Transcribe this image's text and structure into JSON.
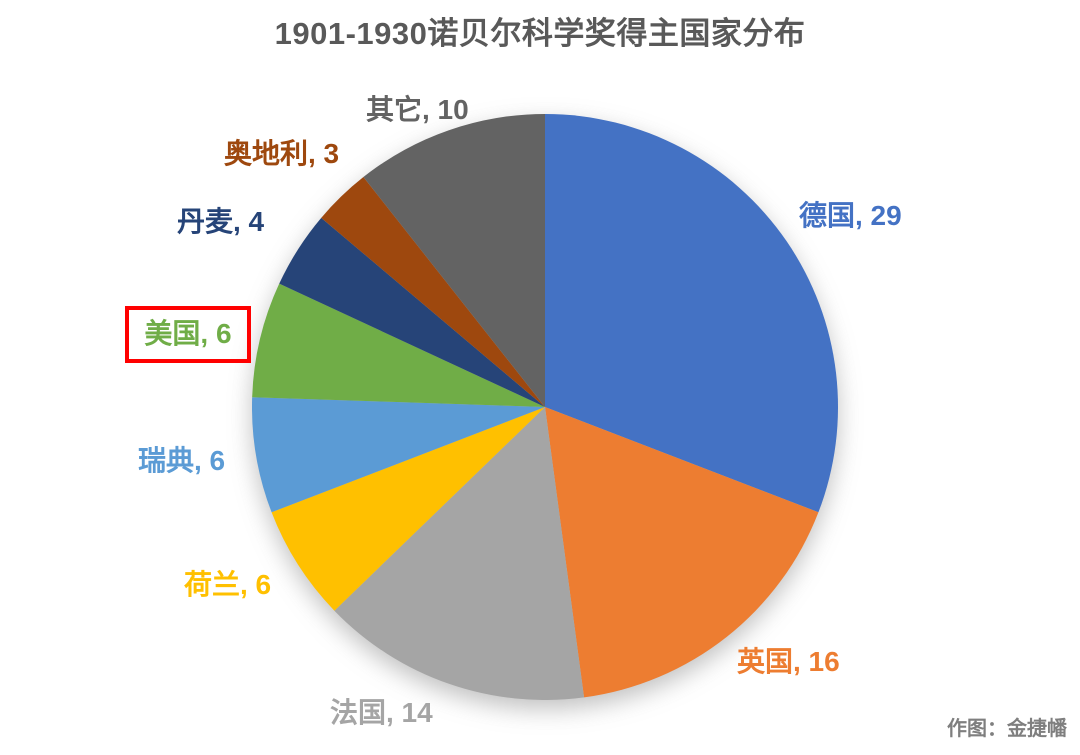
{
  "title": "1901-1930诺贝尔科学奖得主国家分布",
  "attribution": "作图：金捷幡",
  "chart_data": {
    "type": "pie",
    "title": "1901-1930诺贝尔科学奖得主国家分布",
    "total": 94,
    "start_angle_deg": 0,
    "direction": "clockwise",
    "legend": "none",
    "labels_position": "outside",
    "highlighted_slice": "美国",
    "highlight_color": "#FF0000",
    "title_color": "#595959",
    "attribution_color": "#7F7F7F",
    "slices": [
      {
        "key": "germany",
        "name": "德国",
        "value": 29,
        "label": "德国, 29",
        "color": "#4472C4"
      },
      {
        "key": "uk",
        "name": "英国",
        "value": 16,
        "label": "英国, 16",
        "color": "#ED7D31"
      },
      {
        "key": "france",
        "name": "法国",
        "value": 14,
        "label": "法国, 14",
        "color": "#A5A5A5"
      },
      {
        "key": "netherlands",
        "name": "荷兰",
        "value": 6,
        "label": "荷兰, 6",
        "color": "#FFC000"
      },
      {
        "key": "sweden",
        "name": "瑞典",
        "value": 6,
        "label": "瑞典, 6",
        "color": "#5B9BD5"
      },
      {
        "key": "usa",
        "name": "美国",
        "value": 6,
        "label": "美国, 6",
        "color": "#70AD47"
      },
      {
        "key": "denmark",
        "name": "丹麦",
        "value": 4,
        "label": "丹麦, 4",
        "color": "#264478"
      },
      {
        "key": "austria",
        "name": "奥地利",
        "value": 3,
        "label": "奥地利, 3",
        "color": "#9E480E"
      },
      {
        "key": "others",
        "name": "其它",
        "value": 10,
        "label": "其它, 10",
        "color": "#636363"
      }
    ]
  }
}
